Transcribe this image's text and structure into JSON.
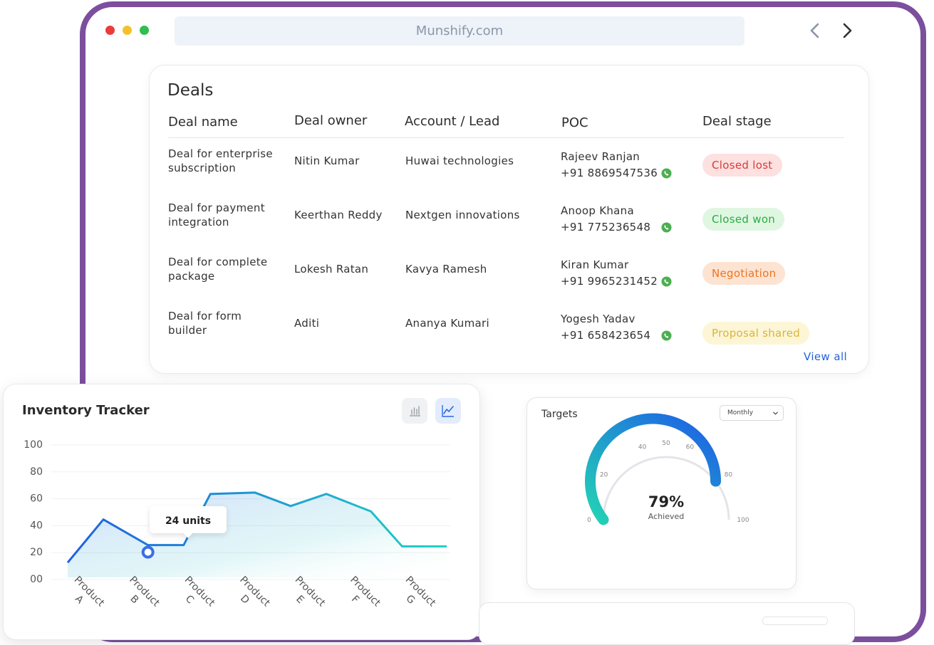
{
  "browser": {
    "url": "Munshify.com",
    "back_icon": "chevron-left-icon",
    "forward_icon": "chevron-right-icon"
  },
  "deals": {
    "title": "Deals",
    "columns": [
      "Deal name",
      "Deal owner",
      "Account / Lead",
      "POC",
      "Deal stage"
    ],
    "rows": [
      {
        "name_line1": "Deal for enterprise",
        "name_line2": "subscription",
        "owner": "Nitin Kumar",
        "account": "Huwai technologies",
        "poc_name": "Rajeev Ranjan",
        "poc_phone": "+91 8869547536",
        "stage": "Closed lost"
      },
      {
        "name_line1": "Deal for payment",
        "name_line2": "integration",
        "owner": "Keerthan Reddy",
        "account": "Nextgen innovations",
        "poc_name": "Anoop Khana",
        "poc_phone": "+91 775236548",
        "stage": "Closed won"
      },
      {
        "name_line1": "Deal for complete",
        "name_line2": "package",
        "owner": "Lokesh Ratan",
        "account": "Kavya Ramesh",
        "poc_name": "Kiran Kumar",
        "poc_phone": "+91 9965231452",
        "stage": "Negotiation"
      },
      {
        "name_line1": "Deal for form",
        "name_line2": "builder",
        "owner": "Aditi",
        "account": "Ananya Kumari",
        "poc_name": "Yogesh Yadav",
        "poc_phone": "+91 658423654",
        "stage": "Proposal shared"
      }
    ],
    "stage_colors": {
      "Closed lost": {
        "bg": "#fde0e0",
        "fg": "#d93a3a"
      },
      "Closed won": {
        "bg": "#dff7e1",
        "fg": "#2eaa45"
      },
      "Negotiation": {
        "bg": "#fde3d2",
        "fg": "#f0741f"
      },
      "Proposal shared": {
        "bg": "#fdf6d6",
        "fg": "#d8b53c"
      }
    },
    "view_all": "View all"
  },
  "inventory": {
    "title": "Inventory Tracker",
    "bar_icon": "bar-chart-icon",
    "line_icon": "line-chart-icon",
    "tooltip": "24 units",
    "chart_data": {
      "type": "line",
      "title": "Inventory Tracker",
      "y_ticks": [
        "100",
        "80",
        "60",
        "40",
        "20",
        "00"
      ],
      "ylim": [
        0,
        100
      ],
      "grid": true,
      "x_labels": [
        {
          "top": "Product",
          "bottom": "A"
        },
        {
          "top": "Product",
          "bottom": "B"
        },
        {
          "top": "Product",
          "bottom": "C"
        },
        {
          "top": "Product",
          "bottom": "D"
        },
        {
          "top": "Product",
          "bottom": "E"
        },
        {
          "top": "Product",
          "bottom": "F"
        },
        {
          "top": "Product",
          "bottom": "G"
        }
      ],
      "series": [
        {
          "x": [
            0,
            0.8,
            1.8,
            2.6,
            3.2,
            4.2,
            5.0,
            5.8,
            6.8,
            7.5,
            8.5
          ],
          "y": [
            11,
            43,
            24,
            24,
            62,
            63,
            53,
            62,
            49,
            23,
            23
          ]
        }
      ],
      "highlight": {
        "x": 1.8,
        "y": 24,
        "label": "24 units"
      },
      "colors": {
        "start": "#1f5fe0",
        "end": "#22d3c3"
      }
    }
  },
  "targets": {
    "title": "Targets",
    "period": "Monthly",
    "value": "79%",
    "caption": "Achieved",
    "achieved": 0.79,
    "scale_labels": [
      "0",
      "20",
      "40",
      "50",
      "60",
      "80",
      "100"
    ],
    "colors": {
      "start": "#22d3b4",
      "end": "#1e5ce8",
      "track": "#e3e5e9"
    }
  }
}
